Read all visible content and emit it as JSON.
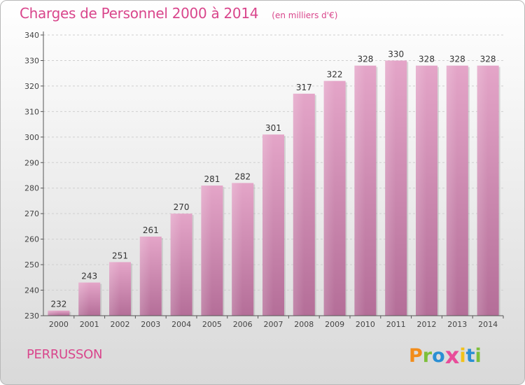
{
  "chart_data": {
    "type": "bar",
    "title": "Charges de Personnel 2000 à 2014",
    "unit_note": "(en milliers d'€)",
    "categories": [
      "2000",
      "2001",
      "2002",
      "2003",
      "2004",
      "2005",
      "2006",
      "2007",
      "2008",
      "2009",
      "2010",
      "2011",
      "2012",
      "2013",
      "2014"
    ],
    "values": [
      232,
      243,
      251,
      261,
      270,
      281,
      282,
      301,
      317,
      322,
      328,
      330,
      328,
      328,
      328
    ],
    "ylim": [
      230,
      340
    ],
    "yticks": [
      230,
      240,
      250,
      260,
      270,
      280,
      290,
      300,
      310,
      320,
      330,
      340
    ],
    "grid": true,
    "legend": "none",
    "bar_color": "#c9739f"
  },
  "footer": {
    "commune": "PERRUSSON",
    "logo_letters": [
      "P",
      "r",
      "o",
      "x",
      "i",
      "t",
      "i"
    ],
    "logo_colors": [
      "#f28c1a",
      "#7dbf3a",
      "#2a8fd4",
      "#e84d9a",
      "#f2c21a",
      "#2a8fd4",
      "#7dbf3a"
    ]
  }
}
